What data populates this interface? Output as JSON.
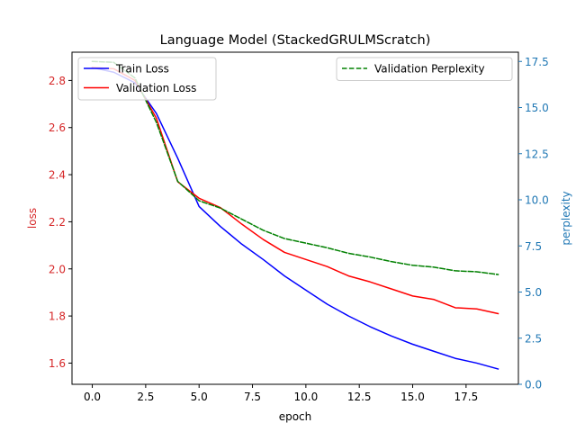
{
  "chart_data": {
    "type": "line",
    "title": "Language Model (StackedGRULMScratch)",
    "xlabel": "epoch",
    "ylabel_left": "loss",
    "ylabel_right": "perplexity",
    "xlim": [
      -0.95,
      19.95
    ],
    "ylim_left": [
      1.51,
      2.92
    ],
    "ylim_right": [
      0,
      18
    ],
    "x_ticks": [
      0,
      2.5,
      5,
      7.5,
      10,
      12.5,
      15,
      17.5
    ],
    "x_tick_labels": [
      "0.0",
      "2.5",
      "5.0",
      "7.5",
      "10.0",
      "12.5",
      "15.0",
      "17.5"
    ],
    "y_left_ticks": [
      1.6,
      1.8,
      2.0,
      2.2,
      2.4,
      2.6,
      2.8
    ],
    "y_left_tick_labels": [
      "1.6",
      "1.8",
      "2.0",
      "2.2",
      "2.4",
      "2.6",
      "2.8"
    ],
    "y_right_ticks": [
      0,
      2.5,
      5,
      7.5,
      10,
      12.5,
      15,
      17.5
    ],
    "y_right_tick_labels": [
      "0.0",
      "2.5",
      "5.0",
      "7.5",
      "10.0",
      "12.5",
      "15.0",
      "17.5"
    ],
    "x": [
      0,
      1,
      2,
      3,
      4,
      5,
      6,
      7,
      8,
      9,
      10,
      11,
      12,
      13,
      14,
      15,
      16,
      17,
      18,
      19
    ],
    "series": [
      {
        "name": "Train Loss",
        "axis": "left",
        "color": "#0000ff",
        "style": "solid",
        "values": [
          2.855,
          2.835,
          2.79,
          2.66,
          2.47,
          2.265,
          2.18,
          2.105,
          2.04,
          1.97,
          1.91,
          1.85,
          1.8,
          1.755,
          1.715,
          1.68,
          1.65,
          1.62,
          1.6,
          1.575
        ]
      },
      {
        "name": "Validation Loss",
        "axis": "left",
        "color": "#ff0000",
        "style": "solid",
        "values": [
          2.855,
          2.85,
          2.8,
          2.64,
          2.37,
          2.3,
          2.26,
          2.19,
          2.125,
          2.07,
          2.04,
          2.01,
          1.97,
          1.945,
          1.915,
          1.885,
          1.87,
          1.835,
          1.83,
          1.81
        ]
      },
      {
        "name": "Validation Perplexity",
        "axis": "right",
        "color": "#008000",
        "style": "dashed",
        "values": [
          17.5,
          17.45,
          16.6,
          14.2,
          11.0,
          9.95,
          9.55,
          8.95,
          8.35,
          7.9,
          7.65,
          7.4,
          7.1,
          6.9,
          6.65,
          6.45,
          6.35,
          6.15,
          6.1,
          5.95
        ]
      }
    ],
    "legends": [
      {
        "placement": "top-left",
        "entries": [
          "Train Loss",
          "Validation Loss"
        ]
      },
      {
        "placement": "top-right",
        "entries": [
          "Validation Perplexity"
        ]
      }
    ],
    "grid": false,
    "colors": {
      "left_axis": "#d62728",
      "right_axis": "#1f77b4",
      "axes": "#000000"
    }
  }
}
